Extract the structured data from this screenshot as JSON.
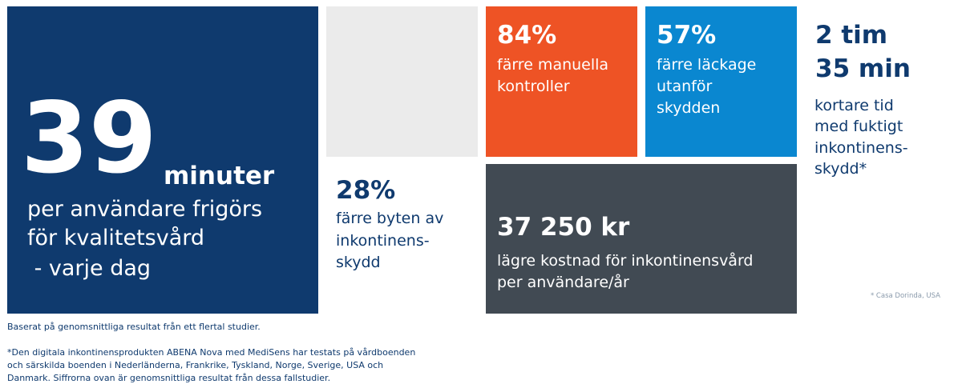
{
  "main": {
    "number": "39",
    "unit": "minuter",
    "lines": [
      "per användare frigörs",
      "för kvalitetsvård",
      " - varje dag"
    ]
  },
  "changes": {
    "figure": "28%",
    "lines": [
      "färre byten av",
      "inkontinens-",
      "skydd"
    ]
  },
  "checks": {
    "figure": "84%",
    "lines": [
      "färre manuella",
      "kontroller"
    ]
  },
  "leaks": {
    "figure": "57%",
    "lines": [
      "färre läckage",
      "utanför",
      "skydden"
    ]
  },
  "cost": {
    "figure": "37 250 kr",
    "lines": [
      "lägre kostnad för inkontinensvård",
      "per användare/år"
    ]
  },
  "time": {
    "figure": [
      "2 tim",
      "35 min"
    ],
    "lines": [
      "kortare tid",
      "med fuktigt",
      "inkontinens-",
      "skydd*"
    ],
    "source": "* Casa Dorinda, USA"
  },
  "footer": {
    "note": "Baserat på genomsnittliga resultat från ett flertal studier.",
    "lines": [
      "*Den digitala inkontinensprodukten ABENA Nova med MediSens har testats på vårdboenden",
      "och särskilda boenden i Nederländerna, Frankrike, Tyskland, Norge, Sverige, USA och",
      "Danmark. Siffrorna ovan är genomsnittliga resultat från dessa fallstudier."
    ]
  }
}
